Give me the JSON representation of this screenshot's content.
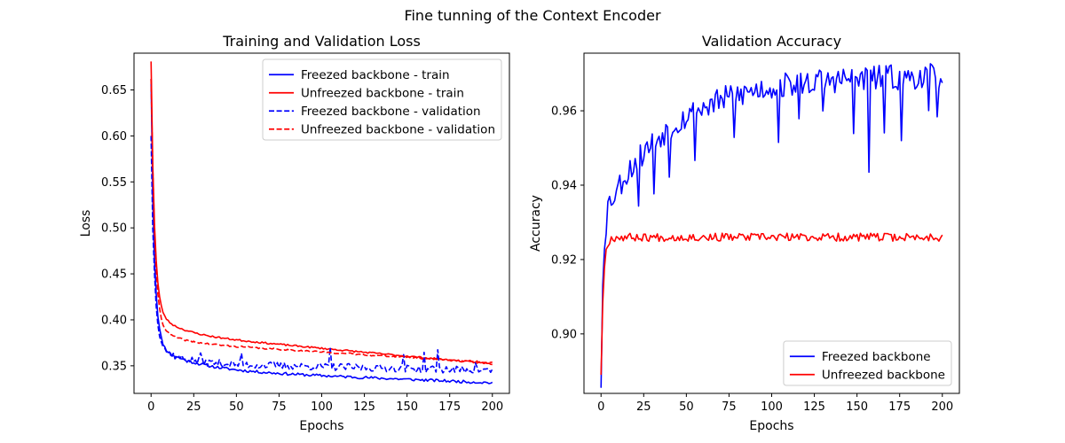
{
  "figure": {
    "suptitle": "Fine tunning of the Context Encoder"
  },
  "chart_data": [
    {
      "type": "line",
      "title": "Training and Validation Loss",
      "xlabel": "Epochs",
      "ylabel": "Loss",
      "xlim": [
        -10,
        210
      ],
      "ylim": [
        0.32,
        0.69
      ],
      "xticks": [
        0,
        25,
        50,
        75,
        100,
        125,
        150,
        175,
        200
      ],
      "yticks": [
        0.35,
        0.4,
        0.45,
        0.5,
        0.55,
        0.6,
        0.65
      ],
      "ytick_labels": [
        "0.35",
        "0.40",
        "0.45",
        "0.50",
        "0.55",
        "0.60",
        "0.65"
      ],
      "grid": false,
      "legend_position": "top-right",
      "series": [
        {
          "name": "Freezed backbone - train",
          "color": "#0000ff",
          "style": "solid",
          "model": {
            "x_end": 200,
            "start": 0.662,
            "rise": [
              0.0,
              0.0
            ],
            "p1": [
              0.26,
              2.0
            ],
            "p2": [
              0.028,
              22.0
            ],
            "p3": [
              0.0,
              1.0
            ],
            "slope": -7.5e-05,
            "base": 0.3465,
            "noise": 0.0015,
            "seed": 11,
            "spikes": []
          }
        },
        {
          "name": "Unfreezed backbone - train",
          "color": "#ff0000",
          "style": "solid",
          "model": {
            "x_end": 200,
            "start": 0.681,
            "rise": [
              0.0,
              0.0
            ],
            "p1": [
              0.26,
              2.0
            ],
            "p2": [
              0.026,
              14.0
            ],
            "p3": [
              0.0,
              1.0
            ],
            "slope": -0.00017,
            "base": 0.386,
            "noise": 0.0009,
            "seed": 23,
            "spikes": []
          }
        },
        {
          "name": "Freezed backbone - validation",
          "color": "#0000ff",
          "style": "dashed",
          "model": {
            "x_end": 200,
            "start": 0.6,
            "rise": [
              0.0,
              0.0
            ],
            "p1": [
              0.21,
              2.0
            ],
            "p2": [
              0.022,
              14.0
            ],
            "p3": [
              0.0,
              1.0
            ],
            "slope": -4e-05,
            "base": 0.353,
            "noise": 0.004,
            "seed": 37,
            "spikes": [
              [
                29,
                0.01
              ],
              [
                53,
                0.01
              ],
              [
                105,
                0.018
              ],
              [
                148,
                0.014
              ],
              [
                160,
                0.014
              ],
              [
                168,
                0.02
              ],
              [
                190,
                0.01
              ]
            ]
          }
        },
        {
          "name": "Unfreezed backbone - validation",
          "color": "#ff0000",
          "style": "dashed",
          "model": {
            "x_end": 200,
            "start": 0.662,
            "rise": [
              0.0,
              0.0
            ],
            "p1": [
              0.28,
              2.0
            ],
            "p2": [
              0.02,
              12.0
            ],
            "p3": [
              0.0,
              1.0
            ],
            "slope": -0.000115,
            "base": 0.3765,
            "noise": 0.0009,
            "seed": 41,
            "spikes": []
          }
        }
      ]
    },
    {
      "type": "line",
      "title": "Validation Accuracy",
      "xlabel": "Epochs",
      "ylabel": "Accuracy",
      "xlim": [
        -10,
        210
      ],
      "ylim": [
        0.884,
        0.9755
      ],
      "xticks": [
        0,
        25,
        50,
        75,
        100,
        125,
        150,
        175,
        200
      ],
      "yticks": [
        0.9,
        0.92,
        0.94,
        0.96
      ],
      "ytick_labels": [
        "0.90",
        "0.92",
        "0.94",
        "0.96"
      ],
      "grid": false,
      "legend_position": "bottom-right",
      "series": [
        {
          "name": "Freezed backbone",
          "color": "#0000ff",
          "style": "solid",
          "model": {
            "x_end": 200,
            "start": 0.8855,
            "rise": [
              0.0464,
              1.0
            ],
            "p1": [
              0.0,
              1.0
            ],
            "p2": [
              0.0,
              1.0
            ],
            "p3": [
              0.0,
              1.0
            ],
            "slope": 0.0,
            "base": 0.0,
            "saturate": [
              0.0385,
              0.0,
              0.9695,
              40.0
            ],
            "noise": 0.0035,
            "seed": 53,
            "dips": [
              [
                22,
                0.012
              ],
              [
                31,
                0.014
              ],
              [
                40,
                0.012
              ],
              [
                55,
                0.01
              ],
              [
                78,
                0.012
              ],
              [
                104,
                0.015
              ],
              [
                116,
                0.012
              ],
              [
                130,
                0.01
              ],
              [
                148,
                0.015
              ],
              [
                157,
                0.024
              ],
              [
                166,
                0.013
              ],
              [
                176,
                0.02
              ],
              [
                192,
                0.01
              ],
              [
                197,
                0.008
              ]
            ],
            "spikes": []
          }
        },
        {
          "name": "Unfreezed backbone",
          "color": "#ff0000",
          "style": "solid",
          "model": {
            "x_end": 200,
            "start": 0.889,
            "rise": [
              0.037,
              1.3
            ],
            "p1": [
              0.0,
              1.0
            ],
            "p2": [
              0.0,
              1.0
            ],
            "p3": [
              0.0,
              1.0
            ],
            "slope": 0.000145,
            "base": 0.9335,
            "saturate": [
              0.0,
              0.0,
              0.0,
              1.0
            ],
            "noise": 0.0011,
            "seed": 67,
            "dips": [],
            "spikes": []
          }
        }
      ]
    }
  ]
}
